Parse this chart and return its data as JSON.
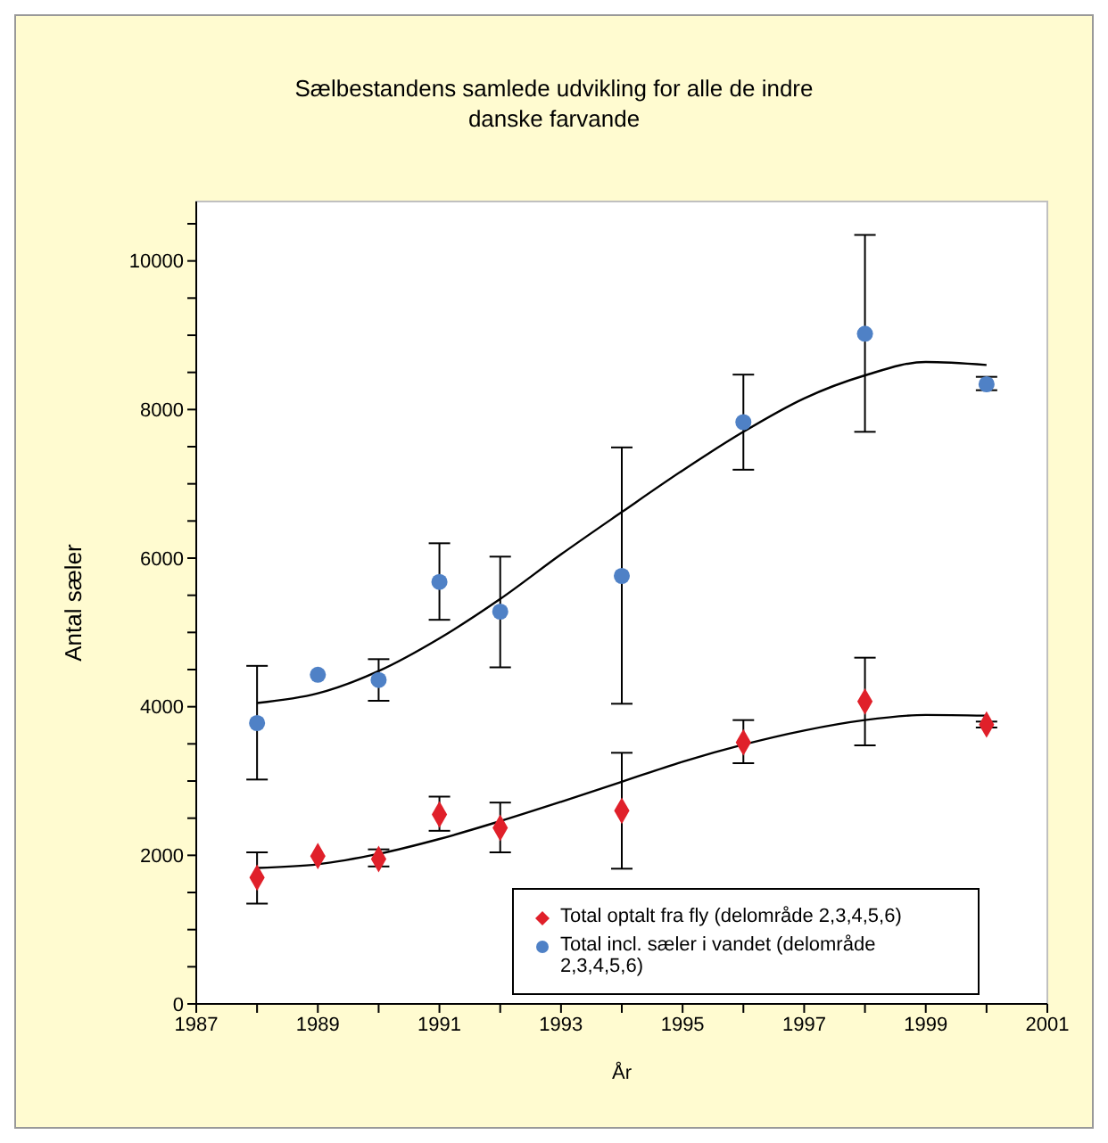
{
  "chart_data": {
    "type": "scatter",
    "title": "Sælbestandens samlede udvikling for alle de indre danske farvande",
    "xlabel": "År",
    "ylabel": "Antal sæler",
    "xlim": [
      1987,
      2001
    ],
    "xticks": [
      1987,
      {
        "value": 1988,
        "label": null
      },
      1989,
      {
        "value": 1990,
        "label": null
      },
      1991,
      {
        "value": 1992,
        "label": null
      },
      1993,
      {
        "value": 1994,
        "label": null
      },
      1995,
      {
        "value": 1996,
        "label": null
      },
      1997,
      {
        "value": 1998,
        "label": null
      },
      1999,
      {
        "value": 2000,
        "label": null
      },
      2001
    ],
    "ylim": [
      0,
      10800
    ],
    "yticks": [
      0,
      {
        "value": 500,
        "label": null
      },
      {
        "value": 1000,
        "label": null
      },
      {
        "value": 1500,
        "label": null
      },
      2000,
      {
        "value": 2500,
        "label": null
      },
      {
        "value": 3000,
        "label": null
      },
      {
        "value": 3500,
        "label": null
      },
      4000,
      {
        "value": 4500,
        "label": null
      },
      {
        "value": 5000,
        "label": null
      },
      {
        "value": 5500,
        "label": null
      },
      6000,
      {
        "value": 6500,
        "label": null
      },
      {
        "value": 7000,
        "label": null
      },
      {
        "value": 7500,
        "label": null
      },
      8000,
      {
        "value": 8500,
        "label": null
      },
      {
        "value": 9000,
        "label": null
      },
      {
        "value": 9500,
        "label": null
      },
      10000,
      {
        "value": 10500,
        "label": null
      }
    ],
    "legend": "bottom right",
    "series": [
      {
        "name": "Total optalt fra fly (delområde 2,3,4,5,6)",
        "marker": "diamond",
        "color": "#e0202a",
        "x": [
          1988,
          1989,
          1990,
          1991,
          1992,
          1994,
          1996,
          1998,
          2000
        ],
        "values": [
          1700,
          1990,
          1950,
          2550,
          2370,
          2600,
          3520,
          4070,
          3760
        ],
        "errors": [
          [
            1350,
            2040
          ],
          null,
          [
            1850,
            2080
          ],
          [
            2330,
            2790
          ],
          [
            2040,
            2710
          ],
          [
            1820,
            3380
          ],
          [
            3240,
            3820
          ],
          [
            3480,
            4660
          ],
          [
            3720,
            3800
          ]
        ]
      },
      {
        "name": "Total incl. sæler i vandet (delområde 2,3,4,5,6)",
        "marker": "circle",
        "color": "#4f81c6",
        "x": [
          1988,
          1989,
          1990,
          1991,
          1992,
          1994,
          1996,
          1998,
          2000
        ],
        "values": [
          3780,
          4430,
          4360,
          5680,
          5280,
          5760,
          7830,
          9020,
          8340
        ],
        "errors": [
          [
            3020,
            4550
          ],
          null,
          [
            4080,
            4640
          ],
          [
            5170,
            6200
          ],
          [
            4530,
            6020
          ],
          [
            4040,
            7490
          ],
          [
            7190,
            8470
          ],
          [
            7700,
            10350
          ],
          [
            8260,
            8440
          ]
        ]
      },
      {
        "type": "line",
        "marker": "none",
        "color": "#000000",
        "x": [
          1988,
          1989,
          1990,
          1991,
          1992,
          1993,
          1994,
          1995,
          1996,
          1997,
          1998,
          1999,
          2000
        ],
        "values": [
          1830,
          1880,
          2020,
          2220,
          2460,
          2720,
          2990,
          3260,
          3490,
          3680,
          3820,
          3890,
          3880
        ]
      },
      {
        "type": "line",
        "marker": "none",
        "color": "#000000",
        "x": [
          1988,
          1989,
          1990,
          1991,
          1992,
          1993,
          1994,
          1995,
          1996,
          1997,
          1998,
          1999,
          2000
        ],
        "values": [
          4050,
          4180,
          4480,
          4920,
          5450,
          6050,
          6620,
          7180,
          7700,
          8150,
          8460,
          8640,
          8600
        ]
      }
    ]
  }
}
